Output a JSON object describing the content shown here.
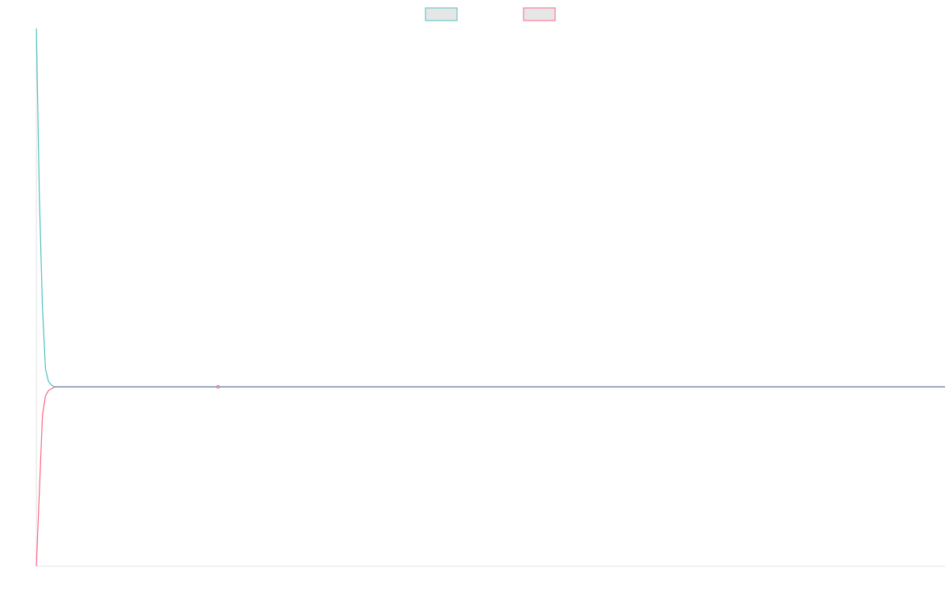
{
  "chart_data": {
    "type": "line",
    "title": "",
    "xlabel": "",
    "ylabel": "",
    "grid": false,
    "legend_position": "top-center",
    "x": [
      0,
      1,
      2,
      3,
      4,
      5,
      6,
      8,
      10,
      20,
      40,
      60,
      80,
      100,
      120,
      140,
      160,
      180,
      200,
      220,
      240,
      260,
      280,
      300
    ],
    "xlim": [
      0,
      300
    ],
    "ylim": [
      -1,
      2
    ],
    "series": [
      {
        "name": "",
        "color": "#4bc0c0",
        "fill": "#e6e6e6",
        "values": [
          2.0,
          1.05,
          0.45,
          0.1,
          0.03,
          0.01,
          0.0,
          0,
          0,
          0,
          0,
          0,
          0,
          0,
          0,
          0,
          0,
          0,
          0,
          0,
          0,
          0,
          0,
          0
        ]
      },
      {
        "name": "",
        "color": "#ff6384",
        "fill": "#e6e6e6",
        "values": [
          -1.0,
          -0.58,
          -0.16,
          -0.05,
          -0.02,
          -0.01,
          0.0,
          0,
          0,
          0,
          0,
          0,
          0,
          0,
          0,
          0,
          0,
          0,
          0,
          0,
          0,
          0,
          0,
          0
        ]
      }
    ],
    "zero_line_color": "#5b8fb4"
  }
}
